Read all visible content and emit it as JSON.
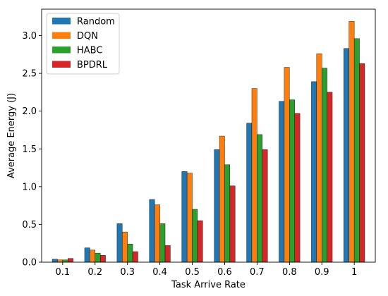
{
  "chart_data": {
    "type": "bar",
    "title": "",
    "xlabel": "Task Arrive Rate",
    "ylabel": "Average Energy (J)",
    "ylim": [
      0,
      3.35
    ],
    "yticks": [
      "0.0",
      "0.5",
      "1.0",
      "1.5",
      "2.0",
      "2.5",
      "3.0"
    ],
    "categories": [
      "0.1",
      "0.2",
      "0.3",
      "0.4",
      "0.5",
      "0.6",
      "0.7",
      "0.8",
      "0.9",
      "1"
    ],
    "legend_position": "top-left",
    "grid": false,
    "series": [
      {
        "name": "Random",
        "color": "#1f77b4",
        "values": [
          0.04,
          0.19,
          0.51,
          0.83,
          1.2,
          1.49,
          1.84,
          2.13,
          2.39,
          2.83
        ]
      },
      {
        "name": "DQN",
        "color": "#ff7f0e",
        "values": [
          0.03,
          0.16,
          0.4,
          0.76,
          1.18,
          1.67,
          2.3,
          2.58,
          2.76,
          3.19
        ]
      },
      {
        "name": "HABC",
        "color": "#2ca02c",
        "values": [
          0.03,
          0.12,
          0.24,
          0.51,
          0.7,
          1.29,
          1.69,
          2.15,
          2.57,
          2.96
        ]
      },
      {
        "name": "BPDRL",
        "color": "#d62728",
        "values": [
          0.05,
          0.09,
          0.14,
          0.22,
          0.55,
          1.01,
          1.49,
          1.97,
          2.25,
          2.63
        ]
      }
    ]
  }
}
